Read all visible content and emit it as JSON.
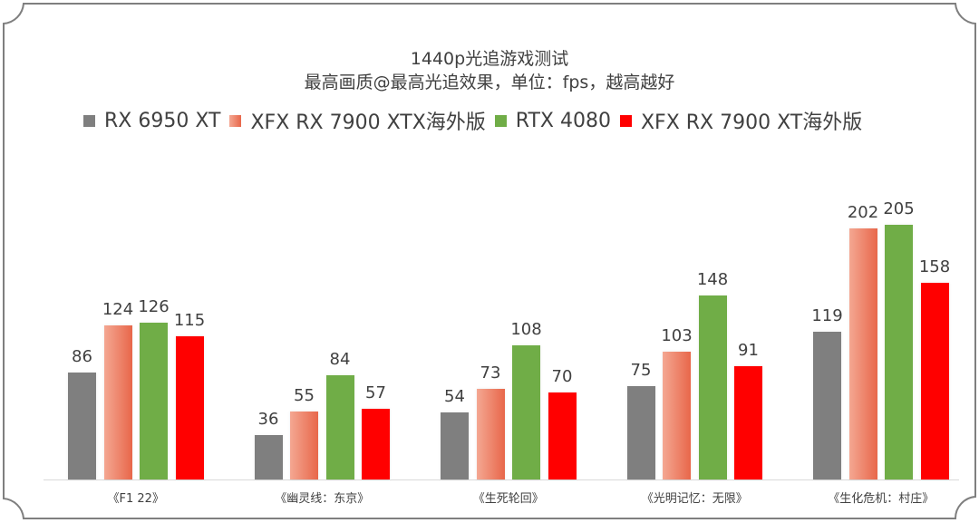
{
  "chart": {
    "title_line1": "1440p光追游戏测试",
    "title_line2": "最高画质@最高光追效果，单位：fps，越高越好"
  },
  "legend": [
    {
      "label": "RX 6950 XT",
      "color": "#7f7f7f"
    },
    {
      "label": "XFX RX 7900 XTX海外版",
      "color": "#ed7d5a"
    },
    {
      "label": "RTX 4080",
      "color": "#70ad47"
    },
    {
      "label": "XFX RX 7900 XT海外版",
      "color": "#ff0000"
    }
  ],
  "categories_display": [
    "《F1 22》",
    "《幽灵线：东京》",
    "《生死轮回》",
    "《光明记忆：无限》",
    "《生化危机：村庄》"
  ],
  "chart_data": {
    "type": "bar",
    "title": "1440p光追游戏测试",
    "subtitle": "最高画质@最高光追效果，单位：fps，越高越好",
    "xlabel": "",
    "ylabel": "fps",
    "categories": [
      "《F1 22》",
      "《幽灵线：东京》",
      "《生死轮回》",
      "《光明记忆：无限》",
      "《生化危机：村庄》"
    ],
    "series": [
      {
        "name": "RX 6950 XT",
        "color": "#7f7f7f",
        "values": [
          86,
          36,
          54,
          75,
          119
        ]
      },
      {
        "name": "XFX RX 7900 XTX海外版",
        "color": "#ed7d5a",
        "gradient": [
          "#f4a792",
          "#e8674a"
        ],
        "values": [
          124,
          55,
          73,
          103,
          202
        ]
      },
      {
        "name": "RTX 4080",
        "color": "#70ad47",
        "values": [
          126,
          84,
          108,
          148,
          205
        ]
      },
      {
        "name": "XFX RX 7900 XT海外版",
        "color": "#ff0000",
        "values": [
          115,
          57,
          70,
          91,
          158
        ]
      }
    ],
    "data_labels": true,
    "grid": false,
    "y_axis_visible": false,
    "legend_position": "top",
    "ylim": [
      0,
      210
    ]
  }
}
